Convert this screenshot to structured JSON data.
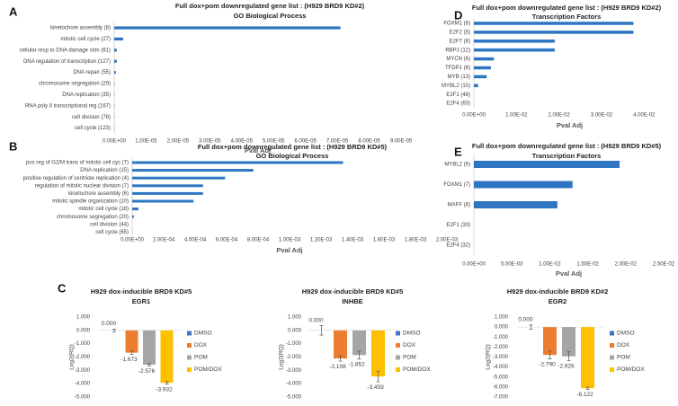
{
  "chart_data": [
    {
      "type": "bar",
      "orientation": "horizontal",
      "panel": "A",
      "title": "Full dox+pom downregulated gene list : (H929 BRD9  KD#2)",
      "subtitle": "GO Biological Process",
      "xlabel": "Pval Adj",
      "categories": [
        "kinetochore assembly (8)",
        "mitotic cell cycle (27)",
        "cellular resp to DNA damage stim (61)",
        "DNA regulation of transcription (127)",
        "DNA repair (55)",
        "chromosome segregation (29)",
        "DNA replication (35)",
        "RNA poly II transcriptional reg (167)",
        "cell division (78)",
        "cell cycle (123)"
      ],
      "values": [
        7.1e-05,
        2.8e-06,
        8e-07,
        8e-07,
        5e-07,
        1e-07,
        1e-07,
        1e-07,
        1e-07,
        1e-07
      ],
      "color": "#2e75c2",
      "xlim": [
        0,
        9e-05
      ],
      "xticks": [
        {
          "value": 0,
          "label": "0.00E+00"
        },
        {
          "value": 1e-05,
          "label": "1.00E-05"
        },
        {
          "value": 2e-05,
          "label": "2.00E-05"
        },
        {
          "value": 3e-05,
          "label": "3.00E-05"
        },
        {
          "value": 4e-05,
          "label": "4.00E-05"
        },
        {
          "value": 5e-05,
          "label": "5.00E-05"
        },
        {
          "value": 6e-05,
          "label": "6.00E-05"
        },
        {
          "value": 7e-05,
          "label": "7.00E-05"
        },
        {
          "value": 8e-05,
          "label": "8.00E-05"
        },
        {
          "value": 9e-05,
          "label": "9.00E-05"
        }
      ]
    },
    {
      "type": "bar",
      "orientation": "horizontal",
      "panel": "B",
      "title": "Full dox+pom downregulated gene list : (H929 BRD9  KD#5)",
      "subtitle": "GO Biological Process",
      "xlabel": "Pval Adj",
      "categories": [
        "pos reg of G2/M trans of mitotic cell cyc (7)",
        "DNA replication (15)",
        "positive regulation of centriole replication (4)",
        "regulation of mitotic nuclear division (7)",
        "kinetochore assembly (6)",
        "mitotic spindle organization (10)",
        "mitotic cell cycle (18)",
        "chromosome segregation (20)",
        "cell division (44)",
        "cell cycle (65)"
      ],
      "values": [
        0.00134,
        0.00077,
        0.00059,
        0.00045,
        0.00045,
        0.00039,
        4e-05,
        1e-05,
        0,
        0
      ],
      "color": "#2e75c2",
      "xlim": [
        0,
        0.002
      ],
      "xticks": [
        {
          "value": 0,
          "label": "0.00E+00"
        },
        {
          "value": 0.0002,
          "label": "2.00E-04"
        },
        {
          "value": 0.0004,
          "label": "4.00E-04"
        },
        {
          "value": 0.0006,
          "label": "6.00E-04"
        },
        {
          "value": 0.0008,
          "label": "8.00E-04"
        },
        {
          "value": 0.001,
          "label": "1.00E-03"
        },
        {
          "value": 0.0012,
          "label": "1.20E-03"
        },
        {
          "value": 0.0014,
          "label": "1.40E-03"
        },
        {
          "value": 0.0016,
          "label": "1.60E-03"
        },
        {
          "value": 0.0018,
          "label": "1.80E-03"
        },
        {
          "value": 0.002,
          "label": "2.00E-03"
        }
      ]
    },
    {
      "type": "bar",
      "orientation": "horizontal",
      "panel": "D",
      "title": "Full dox+pom downregulated gene list : (H929 BRD9  KD#2)",
      "subtitle": "Transcription  Factors",
      "xlabel": "Pval Adj",
      "categories": [
        "FOXM1 (8)",
        "E2F2 (5)",
        "E2F7 (8)",
        "RBPJ (12)",
        "MYCN (6)",
        "TFDP1 (6)",
        "MYB (13)",
        "MYBL2 (10)",
        "E2F1 (48)",
        "E2F4 (63)"
      ],
      "values": [
        0.0375,
        0.0375,
        0.019,
        0.019,
        0.0047,
        0.004,
        0.003,
        0.001,
        0,
        0
      ],
      "color": "#2e75c2",
      "xlim": [
        0,
        0.045
      ],
      "xticks": [
        {
          "value": 0,
          "label": "0.00E+00"
        },
        {
          "value": 0.01,
          "label": "1.00E-02"
        },
        {
          "value": 0.02,
          "label": "2.00E-02"
        },
        {
          "value": 0.03,
          "label": "3.00E-02"
        },
        {
          "value": 0.04,
          "label": "4.00E-02"
        }
      ]
    },
    {
      "type": "bar",
      "orientation": "horizontal",
      "panel": "E",
      "title": "Full dox+pom downregulated gene list : (H929 BRD9  KD#5)",
      "subtitle": "Transcription  Factors",
      "xlabel": "Pval Adj",
      "categories": [
        "MYBL2 (6)",
        "FOXM1 (7)",
        "MAFF (8)",
        "E2F1 (33)",
        "E2F4 (32)"
      ],
      "values": [
        0.0192,
        0.013,
        0.011,
        0,
        0
      ],
      "color": "#2e75c2",
      "xlim": [
        0,
        0.025
      ],
      "xticks": [
        {
          "value": 0,
          "label": "0.00E+00"
        },
        {
          "value": 0.005,
          "label": "5.00E-03"
        },
        {
          "value": 0.01,
          "label": "1.00E-02"
        },
        {
          "value": 0.015,
          "label": "1.50E-02"
        },
        {
          "value": 0.02,
          "label": "2.00E-02"
        },
        {
          "value": 0.025,
          "label": "2.50E-02"
        }
      ]
    },
    {
      "type": "bar",
      "panel": "C",
      "title": "H929 dox-inducible BRD9  KD#5",
      "subtitle": "EGR1",
      "ylabel": "Log2(RQ)",
      "ylim": [
        -5,
        1
      ],
      "yticks": [
        {
          "value": 1,
          "label": "1.000"
        },
        {
          "value": 0,
          "label": "0.000"
        },
        {
          "value": -1,
          "label": "-1.000"
        },
        {
          "value": -2,
          "label": "-2.000"
        },
        {
          "value": -3,
          "label": "-3.000"
        },
        {
          "value": -4,
          "label": "-4.000"
        },
        {
          "value": -5,
          "label": "-5.000"
        }
      ],
      "series": [
        {
          "name": "DMSO",
          "color": "#4472c4",
          "values": [
            0
          ],
          "errors": [
            0.1
          ],
          "value_labels": [
            "0.000"
          ]
        },
        {
          "name": "DOX",
          "color": "#ed7d31",
          "values": [
            -1.673
          ],
          "errors": [
            0.12
          ],
          "value_labels": [
            "-1.673"
          ]
        },
        {
          "name": "POM",
          "color": "#a5a5a5",
          "values": [
            -2.576
          ],
          "errors": [
            0.08
          ],
          "value_labels": [
            "-2.576"
          ]
        },
        {
          "name": "POM/DOX",
          "color": "#ffc000",
          "values": [
            -3.932
          ],
          "errors": [
            0.1
          ],
          "value_labels": [
            "-3.932"
          ]
        }
      ]
    },
    {
      "type": "bar",
      "title": "H929 dox-inducible BRD9  KD#5",
      "subtitle": "INHBE",
      "ylabel": "Log2(RQ)",
      "ylim": [
        -5,
        1
      ],
      "yticks": [
        {
          "value": 1,
          "label": "1.000"
        },
        {
          "value": 0,
          "label": "0.000"
        },
        {
          "value": -1,
          "label": "-1.000"
        },
        {
          "value": -2,
          "label": "-2.000"
        },
        {
          "value": -3,
          "label": "-3.000"
        },
        {
          "value": -4,
          "label": "-4.000"
        },
        {
          "value": -5,
          "label": "-5.000"
        }
      ],
      "series": [
        {
          "name": "DMSO",
          "color": "#4472c4",
          "values": [
            0
          ],
          "errors": [
            0.35
          ],
          "value_labels": [
            "0.000"
          ]
        },
        {
          "name": "DOX",
          "color": "#ed7d31",
          "values": [
            -2.108
          ],
          "errors": [
            0.2
          ],
          "value_labels": [
            "-2.108"
          ]
        },
        {
          "name": "POM",
          "color": "#a5a5a5",
          "values": [
            -1.852
          ],
          "errors": [
            0.3
          ],
          "value_labels": [
            "-1.852"
          ]
        },
        {
          "name": "POM/DOX",
          "color": "#ffc000",
          "values": [
            -3.459
          ],
          "errors": [
            0.4
          ],
          "value_labels": [
            "-3.459"
          ]
        }
      ]
    },
    {
      "type": "bar",
      "title": "H929 dox-inducible BRD9  KD#2",
      "subtitle": "EGR2",
      "ylabel": "Log2(RQ)",
      "ylim": [
        -7,
        1
      ],
      "yticks": [
        {
          "value": 1,
          "label": "1.000"
        },
        {
          "value": 0,
          "label": "0.000"
        },
        {
          "value": -1,
          "label": "-1.000"
        },
        {
          "value": -2,
          "label": "-2.000"
        },
        {
          "value": -3,
          "label": "-3.000"
        },
        {
          "value": -4,
          "label": "-4.000"
        },
        {
          "value": -5,
          "label": "-5.000"
        },
        {
          "value": -6,
          "label": "-6.000"
        },
        {
          "value": -7,
          "label": "-7.000"
        }
      ],
      "series": [
        {
          "name": "DMSO",
          "color": "#4472c4",
          "values": [
            0
          ],
          "errors": [
            0.2
          ],
          "value_labels": [
            "0.000"
          ]
        },
        {
          "name": "DOX",
          "color": "#ed7d31",
          "values": [
            -2.79
          ],
          "errors": [
            0.4
          ],
          "value_labels": [
            "-2.790"
          ]
        },
        {
          "name": "POM",
          "color": "#a5a5a5",
          "values": [
            -2.926
          ],
          "errors": [
            0.45
          ],
          "value_labels": [
            "-2.926"
          ]
        },
        {
          "name": "POM/DOX",
          "color": "#ffc000",
          "values": [
            -6.122
          ],
          "errors": [
            0.1
          ],
          "value_labels": [
            "-6.122"
          ]
        }
      ]
    }
  ]
}
